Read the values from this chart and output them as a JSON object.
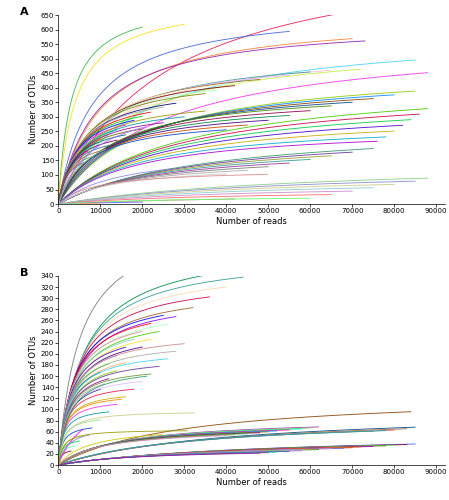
{
  "panel_A_label": "A",
  "panel_B_label": "B",
  "xlabel": "Number of reads",
  "ylabel": "Number of OTUs",
  "A_xlim": [
    0,
    92000
  ],
  "A_ylim": [
    0,
    650
  ],
  "B_xlim": [
    0,
    92000
  ],
  "B_ylim": [
    0,
    340
  ],
  "A_xticks": [
    0,
    10000,
    20000,
    30000,
    40000,
    50000,
    60000,
    70000,
    80000,
    90000
  ],
  "B_xticks": [
    0,
    10000,
    20000,
    30000,
    40000,
    50000,
    60000,
    70000,
    80000,
    90000
  ],
  "A_yticks": [
    0,
    50,
    100,
    150,
    200,
    250,
    300,
    350,
    400,
    450,
    500,
    550,
    600,
    650
  ],
  "B_yticks": [
    0,
    20,
    40,
    60,
    80,
    100,
    120,
    140,
    160,
    180,
    200,
    220,
    240,
    260,
    280,
    300,
    320,
    340
  ],
  "background_color": "#ffffff",
  "label_fontsize": 6,
  "tick_fontsize": 5,
  "panel_label_fontsize": 8,
  "line_width": 0.65
}
